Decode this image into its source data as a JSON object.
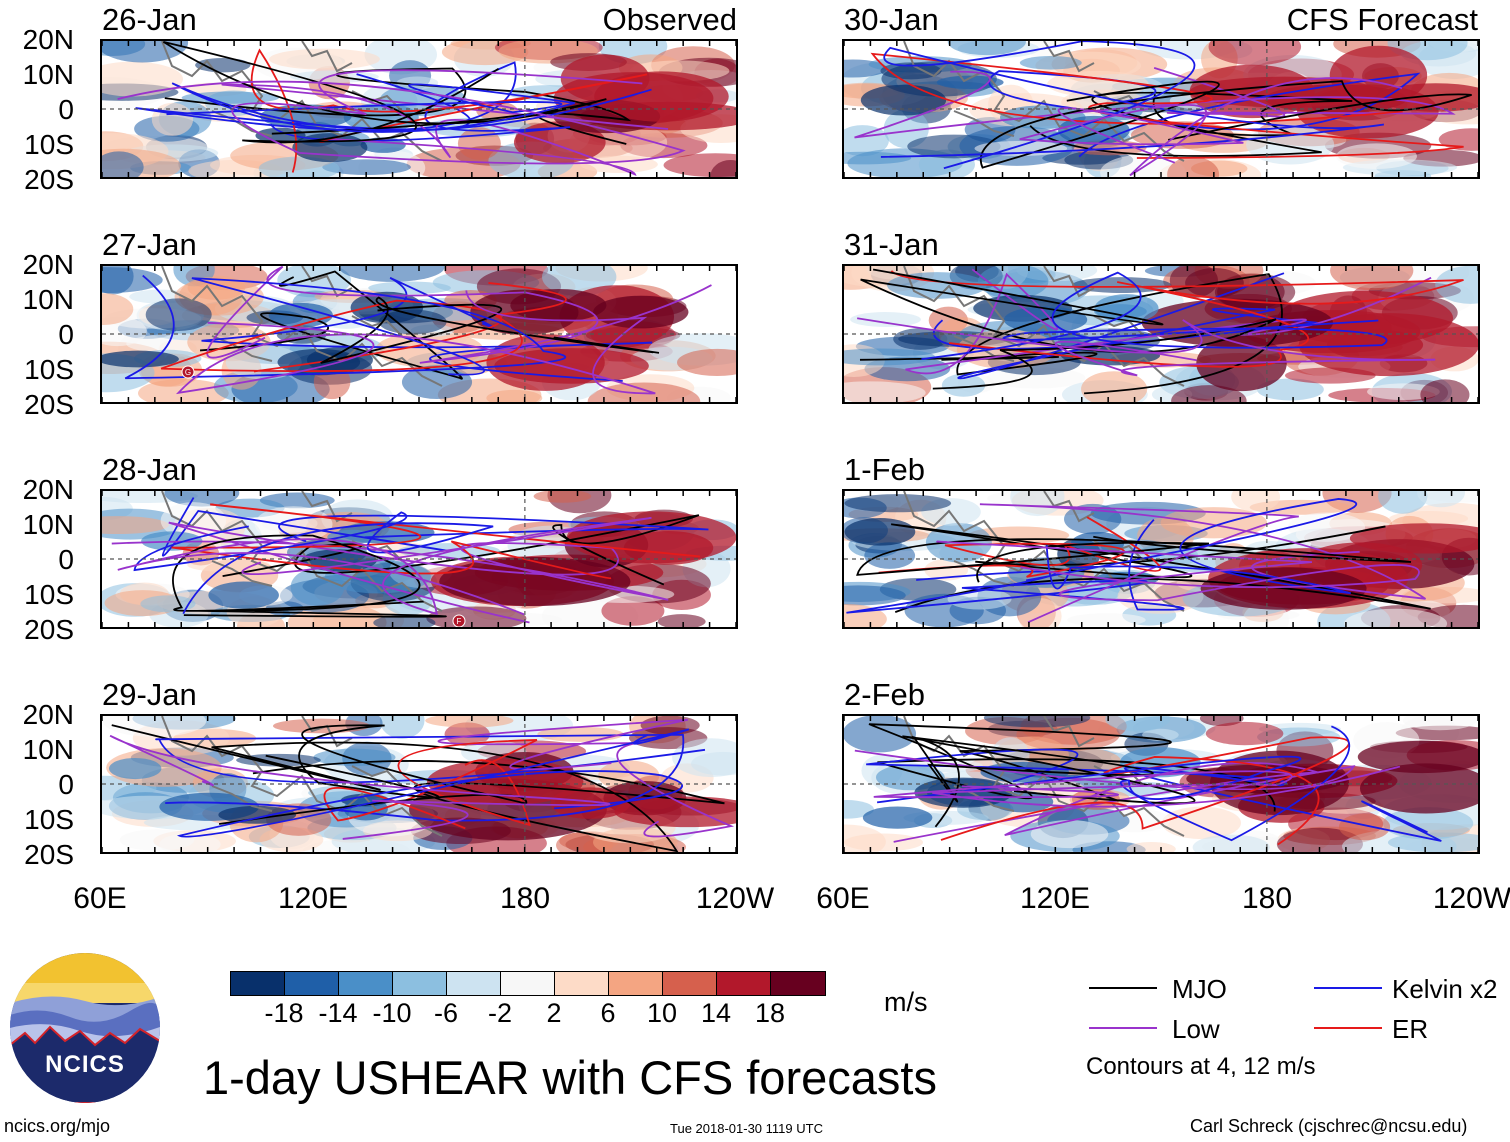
{
  "title": "1-day USHEAR with CFS forecasts",
  "left_column_title": "Observed",
  "right_column_title": "CFS Forecast",
  "panels_left": [
    {
      "date": "26-Jan"
    },
    {
      "date": "27-Jan"
    },
    {
      "date": "28-Jan"
    },
    {
      "date": "29-Jan"
    }
  ],
  "panels_right": [
    {
      "date": "30-Jan"
    },
    {
      "date": "31-Jan"
    },
    {
      "date": "1-Feb"
    },
    {
      "date": "2-Feb"
    }
  ],
  "lat_labels": [
    "20N",
    "10N",
    "0",
    "10S",
    "20S"
  ],
  "lon_labels": [
    "60E",
    "120E",
    "180",
    "120W"
  ],
  "colorbar": {
    "ticks": [
      "-18",
      "-14",
      "-10",
      "-6",
      "-2",
      "2",
      "6",
      "10",
      "14",
      "18"
    ],
    "colors": [
      "#08306b",
      "#1f5fa8",
      "#4a8fc8",
      "#8cbfe0",
      "#cde3f1",
      "#f7f7f7",
      "#fddbc7",
      "#f4a582",
      "#d6604d",
      "#b2182b",
      "#67001f"
    ],
    "units": "m/s"
  },
  "legend": [
    {
      "label": "MJO",
      "color": "#000000"
    },
    {
      "label": "Kelvin x2",
      "color": "#1a1ae6"
    },
    {
      "label": "Low",
      "color": "#9933cc"
    },
    {
      "label": "ER",
      "color": "#e61a1a"
    }
  ],
  "contour_note": "Contours at 4, 12 m/s",
  "logo_text": "NCICS",
  "footer_left": "ncics.org/mjo",
  "timestamp": "Tue 2018-01-30 1119 UTC",
  "footer_right": "Carl Schreck (cjschrec@ncsu.edu)",
  "storm_markers": [
    "G",
    "F"
  ]
}
